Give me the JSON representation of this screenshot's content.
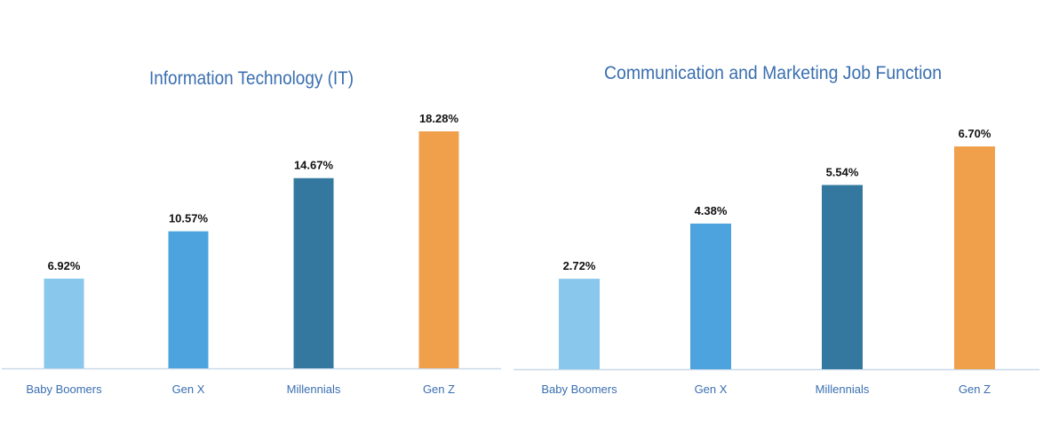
{
  "chart_data": [
    {
      "type": "bar",
      "title": "Information Technology (IT)",
      "categories": [
        "Baby Boomers",
        "Gen X",
        "Millennials",
        "Gen Z"
      ],
      "values": [
        6.92,
        10.57,
        14.67,
        18.28
      ],
      "value_labels": [
        "6.92%",
        "10.57%",
        "14.67%",
        "18.28%"
      ],
      "colors": [
        "#89C8EC",
        "#4CA3DD",
        "#34789F",
        "#F0A04B"
      ],
      "unit": "%",
      "ylim": [
        0,
        18.28
      ],
      "grid": false,
      "legend": "none"
    },
    {
      "type": "bar",
      "title": "Communication and Marketing Job Function",
      "categories": [
        "Baby Boomers",
        "Gen X",
        "Millennials",
        "Gen Z"
      ],
      "values": [
        2.72,
        4.38,
        5.54,
        6.7
      ],
      "value_labels": [
        "2.72%",
        "4.38%",
        "5.54%",
        "6.70%"
      ],
      "colors": [
        "#89C8EC",
        "#4CA3DD",
        "#34789F",
        "#F0A04B"
      ],
      "unit": "%",
      "ylim": [
        0,
        6.7
      ],
      "grid": false,
      "legend": "none"
    }
  ],
  "colors": {
    "title": "#3A6FB0",
    "axis_label": "#3A6FB0",
    "value_label": "#111111",
    "baseline": "#C9D9EA"
  }
}
